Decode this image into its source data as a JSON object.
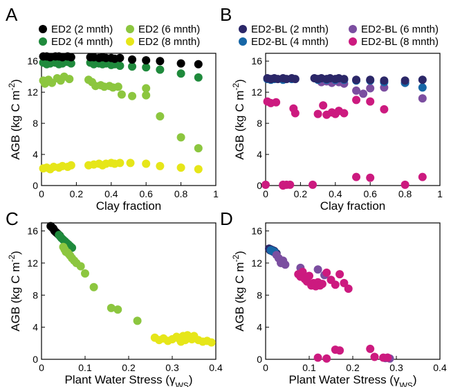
{
  "colors": {
    "ED2 (2 mnth)": "#000000",
    "ED2 (4 mnth)": "#1f8a3c",
    "ED2 (6 mnth)": "#8cc63f",
    "ED2 (8 mnth)": "#e6e619",
    "ED2-BL (2 mnth)": "#2b2768",
    "ED2-BL (4 mnth)": "#1666a6",
    "ED2-BL (6 mnth)": "#7b4ea0",
    "ED2-BL (8 mnth)": "#cc1a7f"
  },
  "chart_data": [
    {
      "panel": "A",
      "type": "scatter",
      "xlabel": "Clay fraction",
      "ylabel": "AGB (kg C m⁻²)",
      "xlim": [
        0,
        1
      ],
      "ylim": [
        0,
        17
      ],
      "xticks": [
        "0",
        "0.2",
        "0.4",
        "0.6",
        "0.8",
        "1"
      ],
      "yticks": [
        "0",
        "4",
        "8",
        "12",
        "16"
      ],
      "legend": "top",
      "series": [
        {
          "name": "ED2 (2 mnth)",
          "x": [
            0.01,
            0.03,
            0.05,
            0.08,
            0.1,
            0.12,
            0.15,
            0.17,
            0.28,
            0.3,
            0.33,
            0.35,
            0.37,
            0.4,
            0.42,
            0.45,
            0.52,
            0.6,
            0.68,
            0.8,
            0.9
          ],
          "y": [
            16.6,
            16.6,
            16.5,
            16.6,
            16.6,
            16.5,
            16.6,
            16.5,
            16.5,
            16.5,
            16.4,
            16.5,
            16.4,
            16.4,
            16.3,
            16.4,
            16.2,
            16.1,
            16.0,
            15.7,
            15.6
          ]
        },
        {
          "name": "ED2 (4 mnth)",
          "x": [
            0.01,
            0.03,
            0.05,
            0.08,
            0.1,
            0.12,
            0.15,
            0.17,
            0.28,
            0.3,
            0.33,
            0.35,
            0.37,
            0.4,
            0.42,
            0.45,
            0.52,
            0.6,
            0.68,
            0.8,
            0.9
          ],
          "y": [
            15.8,
            15.6,
            15.7,
            15.8,
            15.6,
            15.7,
            15.9,
            15.7,
            15.8,
            15.6,
            15.7,
            15.6,
            15.7,
            15.5,
            15.6,
            15.4,
            15.3,
            15.2,
            14.9,
            14.4,
            13.9
          ]
        },
        {
          "name": "ED2 (6 mnth)",
          "x": [
            0.01,
            0.02,
            0.04,
            0.06,
            0.09,
            0.11,
            0.13,
            0.16,
            0.27,
            0.29,
            0.31,
            0.34,
            0.36,
            0.39,
            0.41,
            0.44,
            0.46,
            0.52,
            0.6,
            0.6,
            0.68,
            0.8,
            0.9
          ],
          "y": [
            13.5,
            13.1,
            13.6,
            13.2,
            13.8,
            13.5,
            14.0,
            13.7,
            13.6,
            13.3,
            12.8,
            12.9,
            12.7,
            12.8,
            12.6,
            12.7,
            11.7,
            11.5,
            12.5,
            11.6,
            8.9,
            6.2,
            4.8
          ]
        },
        {
          "name": "ED2 (8 mnth)",
          "x": [
            0.01,
            0.03,
            0.05,
            0.07,
            0.1,
            0.12,
            0.15,
            0.17,
            0.27,
            0.3,
            0.33,
            0.35,
            0.37,
            0.4,
            0.42,
            0.45,
            0.51,
            0.6,
            0.68,
            0.8,
            0.9
          ],
          "y": [
            2.2,
            2.3,
            2.1,
            2.4,
            2.3,
            2.5,
            2.4,
            2.6,
            2.6,
            2.7,
            2.8,
            2.6,
            2.8,
            2.9,
            2.8,
            2.9,
            2.9,
            2.8,
            2.5,
            2.3,
            2.1
          ]
        }
      ]
    },
    {
      "panel": "B",
      "type": "scatter",
      "xlabel": "Clay fraction",
      "ylabel": "AGB (kg C m⁻²)",
      "xlim": [
        0,
        1
      ],
      "ylim": [
        0,
        17
      ],
      "xticks": [
        "0",
        "0.2",
        "0.4",
        "0.6",
        "0.8",
        "1"
      ],
      "yticks": [
        "0",
        "4",
        "8",
        "12",
        "16"
      ],
      "legend": "top",
      "series": [
        {
          "name": "ED2-BL (2 mnth)",
          "x": [
            0.01,
            0.03,
            0.05,
            0.07,
            0.1,
            0.12,
            0.15,
            0.17,
            0.28,
            0.3,
            0.32,
            0.35,
            0.37,
            0.4,
            0.42,
            0.45,
            0.52,
            0.6,
            0.68,
            0.8,
            0.9
          ],
          "y": [
            13.8,
            13.7,
            13.8,
            13.7,
            13.8,
            13.7,
            13.8,
            13.7,
            13.8,
            13.7,
            13.8,
            13.7,
            13.8,
            13.7,
            13.8,
            13.7,
            13.6,
            13.6,
            13.5,
            13.5,
            13.6
          ]
        },
        {
          "name": "ED2-BL (4 mnth)",
          "x": [
            0.01,
            0.03,
            0.05,
            0.1,
            0.15,
            0.3,
            0.35,
            0.4,
            0.45,
            0.52,
            0.6,
            0.68,
            0.8,
            0.9
          ],
          "y": [
            13.7,
            13.6,
            13.7,
            13.6,
            13.7,
            13.6,
            13.6,
            13.6,
            13.6,
            13.5,
            13.5,
            13.3,
            13.2,
            12.6
          ]
        },
        {
          "name": "ED2-BL (6 mnth)",
          "x": [
            0.32,
            0.35,
            0.38,
            0.42,
            0.45,
            0.52,
            0.56,
            0.6,
            0.68,
            0.8,
            0.9
          ],
          "y": [
            13.3,
            13.4,
            13.2,
            13.3,
            13.1,
            12.2,
            11.8,
            12.5,
            12.6,
            13.2,
            11.2
          ]
        },
        {
          "name": "ED2-BL (8 mnth)",
          "x": [
            0.01,
            0.03,
            0.06,
            0.1,
            0.12,
            0.16,
            0.17,
            0.3,
            0.33,
            0.35,
            0.38,
            0.4,
            0.42,
            0.45,
            0.52,
            0.6,
            0.68,
            0.0,
            0.1,
            0.14,
            0.27,
            0.52,
            0.6,
            0.9,
            0.8
          ],
          "y": [
            10.8,
            10.6,
            10.7,
            0.1,
            0.1,
            9.9,
            9.3,
            9.2,
            10.3,
            9.1,
            9.4,
            9.2,
            9.6,
            9.3,
            11.0,
            10.8,
            9.8,
            0.1,
            0.0,
            0.1,
            0.1,
            1.1,
            1.0,
            1.1,
            0.1
          ]
        }
      ]
    },
    {
      "panel": "C",
      "type": "scatter",
      "xlabel": "Plant Water Stress (γws)",
      "ylabel": "AGB (kg C m⁻²)",
      "xlim": [
        0,
        0.4
      ],
      "ylim": [
        0,
        17
      ],
      "xticks": [
        "0",
        "0.1",
        "0.2",
        "0.3",
        "0.4"
      ],
      "yticks": [
        "0",
        "4",
        "8",
        "12",
        "16"
      ],
      "series": [
        {
          "name": "ED2 (2 mnth)",
          "x": [
            0.021,
            0.023,
            0.025,
            0.027,
            0.028,
            0.03,
            0.032,
            0.034,
            0.036,
            0.038,
            0.04,
            0.042
          ],
          "y": [
            16.6,
            16.5,
            16.4,
            16.3,
            16.2,
            16.0,
            15.9,
            15.8,
            15.7,
            15.6,
            15.5,
            15.4
          ]
        },
        {
          "name": "ED2 (4 mnth)",
          "x": [
            0.04,
            0.043,
            0.046,
            0.05,
            0.054,
            0.058,
            0.062,
            0.066,
            0.07
          ],
          "y": [
            15.5,
            15.3,
            15.1,
            14.9,
            14.7,
            14.5,
            14.3,
            14.1,
            13.9
          ]
        },
        {
          "name": "ED2 (6 mnth)",
          "x": [
            0.05,
            0.053,
            0.056,
            0.06,
            0.063,
            0.066,
            0.07,
            0.075,
            0.08,
            0.09,
            0.1,
            0.12,
            0.16,
            0.175,
            0.22
          ],
          "y": [
            14.0,
            13.7,
            13.4,
            13.3,
            13.1,
            12.9,
            12.6,
            12.3,
            12.0,
            11.6,
            10.7,
            9.0,
            6.4,
            6.2,
            4.8
          ]
        },
        {
          "name": "ED2 (8 mnth)",
          "x": [
            0.26,
            0.27,
            0.28,
            0.29,
            0.3,
            0.31,
            0.315,
            0.32,
            0.325,
            0.33,
            0.335,
            0.34,
            0.345,
            0.35,
            0.36,
            0.37,
            0.38,
            0.39,
            0.32,
            0.33
          ],
          "y": [
            2.7,
            2.4,
            2.6,
            2.3,
            2.5,
            2.8,
            2.6,
            2.4,
            2.9,
            2.7,
            3.0,
            2.8,
            2.5,
            2.9,
            2.4,
            2.2,
            2.3,
            2.1,
            2.2,
            2.4
          ]
        }
      ]
    },
    {
      "panel": "D",
      "type": "scatter",
      "xlabel": "Plant Water Stress (γws)",
      "ylabel": "AGB (kg C m⁻²)",
      "xlim": [
        0,
        0.4
      ],
      "ylim": [
        0,
        17
      ],
      "xticks": [
        "0",
        "0.1",
        "0.2",
        "0.3",
        "0.4"
      ],
      "yticks": [
        "0",
        "4",
        "8",
        "12",
        "16"
      ],
      "series": [
        {
          "name": "ED2-BL (2 mnth)",
          "x": [
            0.008,
            0.01,
            0.012,
            0.014,
            0.016,
            0.018,
            0.02,
            0.022,
            0.025
          ],
          "y": [
            13.8,
            13.6,
            13.7,
            13.5,
            13.6,
            13.4,
            13.5,
            13.3,
            13.2
          ]
        },
        {
          "name": "ED2-BL (4 mnth)",
          "x": [
            0.012,
            0.016,
            0.02
          ],
          "y": [
            13.6,
            13.5,
            13.4
          ]
        },
        {
          "name": "ED2-BL (6 mnth)",
          "x": [
            0.025,
            0.03,
            0.035,
            0.04,
            0.045,
            0.08,
            0.12,
            0.135,
            0.28,
            0.285,
            0.275
          ],
          "y": [
            13.0,
            12.6,
            12.0,
            12.3,
            11.8,
            11.4,
            11.2,
            10.5,
            0.2,
            0.1,
            0.15
          ]
        },
        {
          "name": "ED2-BL (8 mnth)",
          "x": [
            0.075,
            0.08,
            0.085,
            0.09,
            0.095,
            0.1,
            0.105,
            0.11,
            0.115,
            0.12,
            0.125,
            0.13,
            0.14,
            0.15,
            0.16,
            0.17,
            0.18,
            0.19,
            0.12,
            0.14,
            0.16,
            0.17,
            0.24,
            0.25,
            0.27,
            0.28
          ],
          "y": [
            10.6,
            10.3,
            10.9,
            10.0,
            9.7,
            10.4,
            9.2,
            9.5,
            9.1,
            9.6,
            9.2,
            9.4,
            10.8,
            9.9,
            9.3,
            10.6,
            9.5,
            8.8,
            0.2,
            0.1,
            1.2,
            1.1,
            1.3,
            0.3,
            0.2,
            0.2
          ]
        }
      ]
    }
  ]
}
